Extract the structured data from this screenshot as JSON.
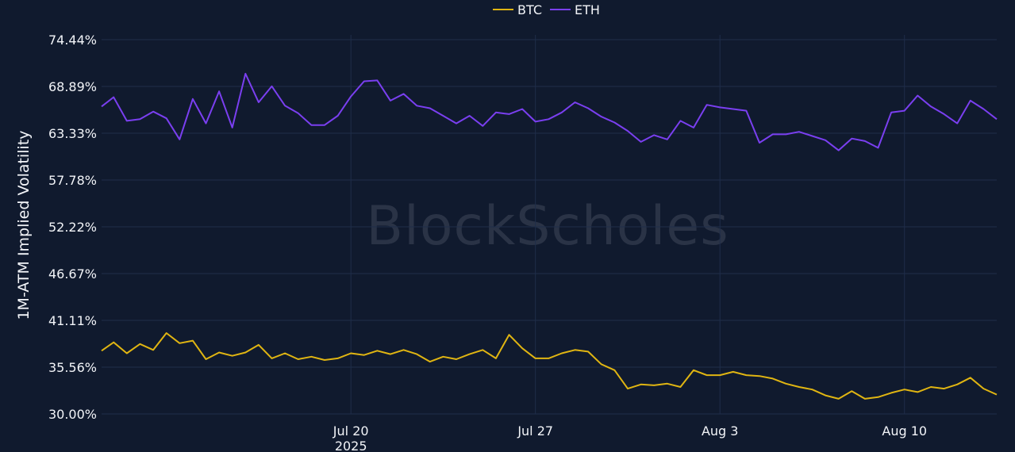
{
  "chart_data": {
    "type": "line",
    "ylabel": "1M-ATM Implied Volatility",
    "watermark": "BlockScholes",
    "ylim": [
      30.0,
      74.44
    ],
    "y_ticks": [
      {
        "value": 30.0,
        "label": "30.00%"
      },
      {
        "value": 35.56,
        "label": "35.56%"
      },
      {
        "value": 41.11,
        "label": "41.11%"
      },
      {
        "value": 46.67,
        "label": "46.67%"
      },
      {
        "value": 52.22,
        "label": "52.22%"
      },
      {
        "value": 57.78,
        "label": "57.78%"
      },
      {
        "value": 63.33,
        "label": "63.33%"
      },
      {
        "value": 68.89,
        "label": "68.89%"
      },
      {
        "value": 74.44,
        "label": "74.44%"
      }
    ],
    "xlim": [
      "2025-07-10T13:00",
      "2025-08-13T12:00"
    ],
    "x_ticks": [
      {
        "value": "2025-07-20",
        "label": "Jul 20",
        "sublabel": "2025"
      },
      {
        "value": "2025-07-27",
        "label": "Jul 27",
        "sublabel": ""
      },
      {
        "value": "2025-08-03",
        "label": "Aug 3",
        "sublabel": ""
      },
      {
        "value": "2025-08-10",
        "label": "Aug 10",
        "sublabel": ""
      }
    ],
    "grid": true,
    "legend_position": "top-center",
    "series": [
      {
        "name": "BTC",
        "color": "#e0b512",
        "points": [
          [
            "2025-07-10T13:00",
            37.5
          ],
          [
            "2025-07-11T00:00",
            38.5
          ],
          [
            "2025-07-11T12:00",
            37.2
          ],
          [
            "2025-07-12T00:00",
            38.3
          ],
          [
            "2025-07-12T12:00",
            37.6
          ],
          [
            "2025-07-13T00:00",
            39.6
          ],
          [
            "2025-07-13T12:00",
            38.4
          ],
          [
            "2025-07-14T00:00",
            38.7
          ],
          [
            "2025-07-14T12:00",
            36.5
          ],
          [
            "2025-07-15T00:00",
            37.3
          ],
          [
            "2025-07-15T12:00",
            36.9
          ],
          [
            "2025-07-16T00:00",
            37.3
          ],
          [
            "2025-07-16T12:00",
            38.2
          ],
          [
            "2025-07-17T00:00",
            36.6
          ],
          [
            "2025-07-17T12:00",
            37.2
          ],
          [
            "2025-07-18T00:00",
            36.5
          ],
          [
            "2025-07-18T12:00",
            36.8
          ],
          [
            "2025-07-19T00:00",
            36.4
          ],
          [
            "2025-07-19T12:00",
            36.6
          ],
          [
            "2025-07-20T00:00",
            37.2
          ],
          [
            "2025-07-20T12:00",
            37.0
          ],
          [
            "2025-07-21T00:00",
            37.5
          ],
          [
            "2025-07-21T12:00",
            37.1
          ],
          [
            "2025-07-22T00:00",
            37.6
          ],
          [
            "2025-07-22T12:00",
            37.1
          ],
          [
            "2025-07-23T00:00",
            36.2
          ],
          [
            "2025-07-23T12:00",
            36.8
          ],
          [
            "2025-07-24T00:00",
            36.5
          ],
          [
            "2025-07-24T12:00",
            37.1
          ],
          [
            "2025-07-25T00:00",
            37.6
          ],
          [
            "2025-07-25T12:00",
            36.6
          ],
          [
            "2025-07-26T00:00",
            39.4
          ],
          [
            "2025-07-26T12:00",
            37.8
          ],
          [
            "2025-07-27T00:00",
            36.6
          ],
          [
            "2025-07-27T12:00",
            36.6
          ],
          [
            "2025-07-28T00:00",
            37.2
          ],
          [
            "2025-07-28T12:00",
            37.6
          ],
          [
            "2025-07-29T00:00",
            37.4
          ],
          [
            "2025-07-29T12:00",
            35.9
          ],
          [
            "2025-07-30T00:00",
            35.2
          ],
          [
            "2025-07-30T12:00",
            33.0
          ],
          [
            "2025-07-31T00:00",
            33.5
          ],
          [
            "2025-07-31T12:00",
            33.4
          ],
          [
            "2025-08-01T00:00",
            33.6
          ],
          [
            "2025-08-01T12:00",
            33.2
          ],
          [
            "2025-08-02T00:00",
            35.2
          ],
          [
            "2025-08-02T12:00",
            34.6
          ],
          [
            "2025-08-03T00:00",
            34.6
          ],
          [
            "2025-08-03T12:00",
            35.0
          ],
          [
            "2025-08-04T00:00",
            34.6
          ],
          [
            "2025-08-04T12:00",
            34.5
          ],
          [
            "2025-08-05T00:00",
            34.2
          ],
          [
            "2025-08-05T12:00",
            33.6
          ],
          [
            "2025-08-06T00:00",
            33.2
          ],
          [
            "2025-08-06T12:00",
            32.9
          ],
          [
            "2025-08-07T00:00",
            32.2
          ],
          [
            "2025-08-07T12:00",
            31.8
          ],
          [
            "2025-08-08T00:00",
            32.7
          ],
          [
            "2025-08-08T12:00",
            31.8
          ],
          [
            "2025-08-09T00:00",
            32.0
          ],
          [
            "2025-08-09T12:00",
            32.5
          ],
          [
            "2025-08-10T00:00",
            32.9
          ],
          [
            "2025-08-10T12:00",
            32.6
          ],
          [
            "2025-08-11T00:00",
            33.2
          ],
          [
            "2025-08-11T12:00",
            33.0
          ],
          [
            "2025-08-12T00:00",
            33.5
          ],
          [
            "2025-08-12T12:00",
            34.3
          ],
          [
            "2025-08-13T00:00",
            33.0
          ],
          [
            "2025-08-13T12:00",
            32.3
          ]
        ]
      },
      {
        "name": "ETH",
        "color": "#7a3ff0",
        "points": [
          [
            "2025-07-10T13:00",
            66.5
          ],
          [
            "2025-07-11T00:00",
            67.6
          ],
          [
            "2025-07-11T12:00",
            64.8
          ],
          [
            "2025-07-12T00:00",
            65.0
          ],
          [
            "2025-07-12T12:00",
            65.9
          ],
          [
            "2025-07-13T00:00",
            65.1
          ],
          [
            "2025-07-13T12:00",
            62.6
          ],
          [
            "2025-07-14T00:00",
            67.4
          ],
          [
            "2025-07-14T12:00",
            64.5
          ],
          [
            "2025-07-15T00:00",
            68.3
          ],
          [
            "2025-07-15T12:00",
            64.0
          ],
          [
            "2025-07-16T00:00",
            70.4
          ],
          [
            "2025-07-16T12:00",
            67.0
          ],
          [
            "2025-07-17T00:00",
            68.9
          ],
          [
            "2025-07-17T12:00",
            66.6
          ],
          [
            "2025-07-18T00:00",
            65.7
          ],
          [
            "2025-07-18T12:00",
            64.3
          ],
          [
            "2025-07-19T00:00",
            64.3
          ],
          [
            "2025-07-19T12:00",
            65.4
          ],
          [
            "2025-07-20T00:00",
            67.7
          ],
          [
            "2025-07-20T12:00",
            69.5
          ],
          [
            "2025-07-21T00:00",
            69.6
          ],
          [
            "2025-07-21T12:00",
            67.2
          ],
          [
            "2025-07-22T00:00",
            68.0
          ],
          [
            "2025-07-22T12:00",
            66.6
          ],
          [
            "2025-07-23T00:00",
            66.3
          ],
          [
            "2025-07-23T12:00",
            65.4
          ],
          [
            "2025-07-24T00:00",
            64.5
          ],
          [
            "2025-07-24T12:00",
            65.4
          ],
          [
            "2025-07-25T00:00",
            64.2
          ],
          [
            "2025-07-25T12:00",
            65.8
          ],
          [
            "2025-07-26T00:00",
            65.6
          ],
          [
            "2025-07-26T12:00",
            66.2
          ],
          [
            "2025-07-27T00:00",
            64.7
          ],
          [
            "2025-07-27T12:00",
            65.0
          ],
          [
            "2025-07-28T00:00",
            65.8
          ],
          [
            "2025-07-28T12:00",
            67.0
          ],
          [
            "2025-07-29T00:00",
            66.3
          ],
          [
            "2025-07-29T12:00",
            65.3
          ],
          [
            "2025-07-30T00:00",
            64.6
          ],
          [
            "2025-07-30T12:00",
            63.6
          ],
          [
            "2025-07-31T00:00",
            62.3
          ],
          [
            "2025-07-31T12:00",
            63.1
          ],
          [
            "2025-08-01T00:00",
            62.6
          ],
          [
            "2025-08-01T12:00",
            64.8
          ],
          [
            "2025-08-02T00:00",
            64.0
          ],
          [
            "2025-08-02T12:00",
            66.7
          ],
          [
            "2025-08-03T00:00",
            66.4
          ],
          [
            "2025-08-03T12:00",
            66.2
          ],
          [
            "2025-08-04T00:00",
            66.0
          ],
          [
            "2025-08-04T12:00",
            62.2
          ],
          [
            "2025-08-05T00:00",
            63.2
          ],
          [
            "2025-08-05T12:00",
            63.2
          ],
          [
            "2025-08-06T00:00",
            63.5
          ],
          [
            "2025-08-06T12:00",
            63.0
          ],
          [
            "2025-08-07T00:00",
            62.5
          ],
          [
            "2025-08-07T12:00",
            61.3
          ],
          [
            "2025-08-08T00:00",
            62.7
          ],
          [
            "2025-08-08T12:00",
            62.4
          ],
          [
            "2025-08-09T00:00",
            61.6
          ],
          [
            "2025-08-09T12:00",
            65.8
          ],
          [
            "2025-08-10T00:00",
            66.0
          ],
          [
            "2025-08-10T12:00",
            67.8
          ],
          [
            "2025-08-11T00:00",
            66.5
          ],
          [
            "2025-08-11T12:00",
            65.6
          ],
          [
            "2025-08-12T00:00",
            64.5
          ],
          [
            "2025-08-12T12:00",
            67.2
          ],
          [
            "2025-08-13T00:00",
            66.2
          ],
          [
            "2025-08-13T12:00",
            65.0
          ]
        ]
      }
    ]
  }
}
